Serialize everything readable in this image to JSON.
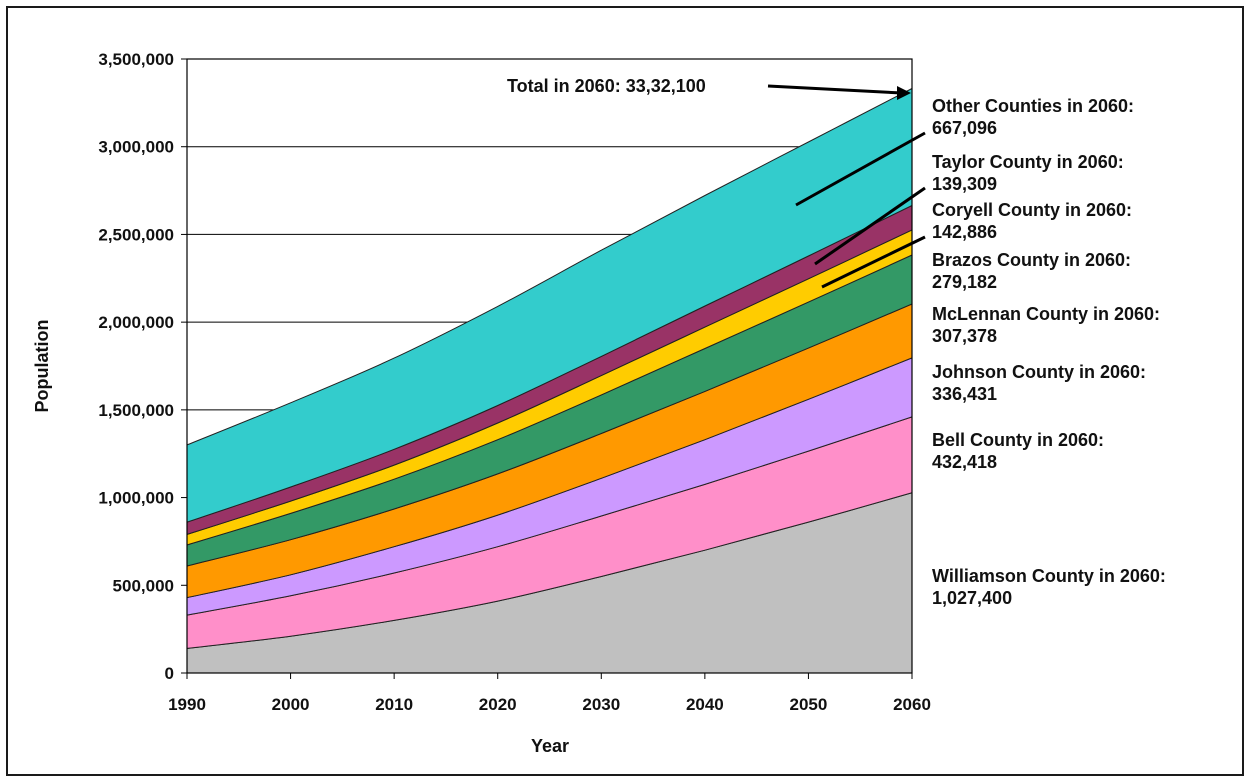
{
  "chart_data": {
    "type": "area",
    "stacked": true,
    "title": "",
    "xlabel": "Year",
    "ylabel": "Population",
    "x": [
      1990,
      2000,
      2010,
      2020,
      2030,
      2040,
      2050,
      2060
    ],
    "xlim": [
      1990,
      2060
    ],
    "ylim": [
      0,
      3500000
    ],
    "yticks": [
      0,
      500000,
      1000000,
      1500000,
      2000000,
      2500000,
      3000000,
      3500000
    ],
    "ytick_labels": [
      "0",
      "500,000",
      "1,000,000",
      "1,500,000",
      "2,000,000",
      "2,500,000",
      "3,000,000",
      "3,500,000"
    ],
    "xtick_labels": [
      "1990",
      "2000",
      "2010",
      "2020",
      "2030",
      "2040",
      "2050",
      "2060"
    ],
    "grid": "horizontal",
    "series": [
      {
        "color": "#c0c0c0",
        "values": [
          140000,
          210000,
          300000,
          410000,
          550000,
          700000,
          860000,
          1027400
        ]
      },
      {
        "color": "#ff8fc9",
        "values": [
          190000,
          230000,
          270000,
          310000,
          345000,
          375000,
          405000,
          432418
        ]
      },
      {
        "color": "#cc99ff",
        "values": [
          100000,
          120000,
          150000,
          180000,
          215000,
          255000,
          295000,
          336431
        ]
      },
      {
        "color": "#ff9900",
        "values": [
          180000,
          200000,
          215000,
          235000,
          255000,
          275000,
          292000,
          307378
        ]
      },
      {
        "color": "#339966",
        "values": [
          120000,
          150000,
          170000,
          195000,
          220000,
          245000,
          262000,
          279182
        ]
      },
      {
        "color": "#ffcc00",
        "values": [
          60000,
          70000,
          80000,
          95000,
          110000,
          122000,
          133000,
          142886
        ]
      },
      {
        "color": "#993366",
        "values": [
          70000,
          80000,
          90000,
          100000,
          110000,
          120000,
          130000,
          139309
        ]
      },
      {
        "color": "#33cccc",
        "values": [
          440000,
          480000,
          520000,
          565000,
          605000,
          630000,
          650000,
          667096
        ]
      }
    ],
    "annotations": [
      {
        "lines": [
          "Total in 2060:  33,32,100"
        ]
      },
      {
        "lines": [
          "Other Counties in 2060:",
          "667,096"
        ]
      },
      {
        "lines": [
          "Taylor County in 2060:",
          "139,309"
        ]
      },
      {
        "lines": [
          "Coryell County in 2060:",
          "142,886"
        ]
      },
      {
        "lines": [
          "Brazos County in 2060:",
          "279,182"
        ]
      },
      {
        "lines": [
          "McLennan County in 2060:",
          "307,378"
        ]
      },
      {
        "lines": [
          "Johnson County in 2060:",
          "336,431"
        ]
      },
      {
        "lines": [
          "Bell  County in 2060:",
          "432,418"
        ]
      },
      {
        "lines": [
          "Williamson County in 2060:",
          "1,027,400"
        ]
      }
    ]
  }
}
